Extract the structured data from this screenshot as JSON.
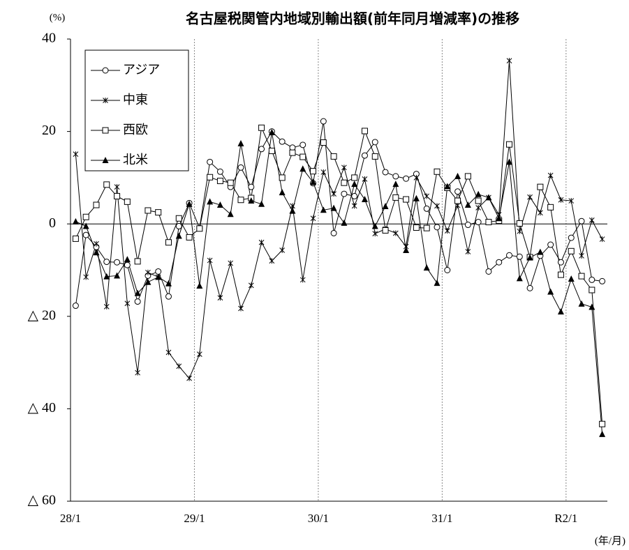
{
  "chart_data": {
    "type": "line",
    "title": "名古屋税関管内地域別輸出額(前年同月増減率)の推移",
    "y_label": "(%)",
    "x_label": "(年/月)",
    "categories": [
      "28/1",
      null,
      null,
      null,
      null,
      null,
      null,
      null,
      null,
      null,
      null,
      null,
      "29/1",
      null,
      null,
      null,
      null,
      null,
      null,
      null,
      null,
      null,
      null,
      null,
      "30/1",
      null,
      null,
      null,
      null,
      null,
      null,
      null,
      null,
      null,
      null,
      null,
      "31/1",
      null,
      null,
      null,
      null,
      null,
      null,
      null,
      null,
      null,
      null,
      null,
      "R2/1",
      null,
      null,
      null
    ],
    "ylim": [
      -60,
      40
    ],
    "yticks": [
      {
        "value": -60,
        "label": "△ 60"
      },
      {
        "value": -40,
        "label": "△ 40"
      },
      {
        "value": -20,
        "label": "△ 20"
      },
      0,
      20,
      40
    ],
    "series": [
      {
        "name": "アジア",
        "color": "#000000",
        "marker": "circle",
        "values": [
          -17.7,
          -2.4,
          -5,
          -8.2,
          -8.3,
          -8.9,
          -16.8,
          -11.2,
          -10.3,
          -15.7,
          -0.5,
          4.5,
          -0.9,
          13.4,
          11.3,
          8.0,
          12.2,
          8.0,
          16.2,
          20.0,
          17.8,
          16.5,
          17.1,
          8.8,
          22.2,
          -2.0,
          6.5,
          6.0,
          14.8,
          17.7,
          11.2,
          10.3,
          9.8,
          10.8,
          3.3,
          -0.7,
          -10.0,
          7.0,
          -0.2,
          0.4,
          -10.3,
          -8.3,
          -6.8,
          -7.1,
          -13.9,
          -6.9,
          -4.5,
          -8.3,
          -3.0,
          0.6,
          -12.1,
          -12.4
        ]
      },
      {
        "name": "中東",
        "color": "#000000",
        "marker": "x",
        "values": [
          15.1,
          -11.5,
          -4.3,
          -17.9,
          8.0,
          -17.2,
          -32.2,
          -10.5,
          -11.5,
          -27.8,
          -30.8,
          -33.4,
          -28.2,
          -7.9,
          -16.0,
          -8.5,
          -18.3,
          -13.3,
          -4.0,
          -8.0,
          -5.7,
          3.9,
          -12.1,
          1.2,
          11.2,
          6.5,
          12.2,
          3.9,
          9.7,
          -2.1,
          -1.1,
          -2.0,
          -4.9,
          10.0,
          6.0,
          3.9,
          -1.5,
          4.0,
          -6.0,
          3.5,
          5.7,
          2.0,
          35.3,
          -1.6,
          5.8,
          2.4,
          10.5,
          5.2,
          5.0,
          -6.9,
          0.8,
          -3.3
        ]
      },
      {
        "name": "西欧",
        "color": "#000000",
        "marker": "square",
        "values": [
          -3.2,
          1.5,
          4.1,
          8.5,
          6.0,
          4.8,
          -8.1,
          2.9,
          2.5,
          -4.0,
          1.2,
          -2.9,
          -1.0,
          10.1,
          9.3,
          8.9,
          5.2,
          5.6,
          20.8,
          15.8,
          10.0,
          15.4,
          14.5,
          11.4,
          17.6,
          14.6,
          8.9,
          10.0,
          20.1,
          14.6,
          -1.4,
          5.7,
          5.3,
          -0.8,
          -0.9,
          11.3,
          7.8,
          5.0,
          10.3,
          5.0,
          0.4,
          0.7,
          17.2,
          0.1,
          -7.2,
          8.0,
          3.6,
          -11.0,
          -5.9,
          -11.3,
          -14.3,
          -43.3
        ]
      },
      {
        "name": "北米",
        "color": "#000000",
        "marker": "triangle",
        "values": [
          0.5,
          -0.5,
          -6.2,
          -11.4,
          -11.2,
          -7.7,
          -15.0,
          -12.6,
          -11.5,
          -12.9,
          -2.6,
          4.3,
          -13.4,
          4.8,
          4.1,
          2.1,
          17.4,
          5.0,
          4.3,
          19.8,
          6.8,
          2.8,
          11.9,
          9.0,
          3.0,
          3.4,
          0.2,
          8.6,
          5.3,
          -0.5,
          3.8,
          8.6,
          -5.7,
          5.5,
          -9.5,
          -12.8,
          8.1,
          10.3,
          4.1,
          6.4,
          5.7,
          1.2,
          13.4,
          -11.8,
          -7.3,
          -6.1,
          -14.7,
          -19.0,
          -11.9,
          -17.3,
          -18.0,
          -45.5
        ]
      }
    ]
  }
}
